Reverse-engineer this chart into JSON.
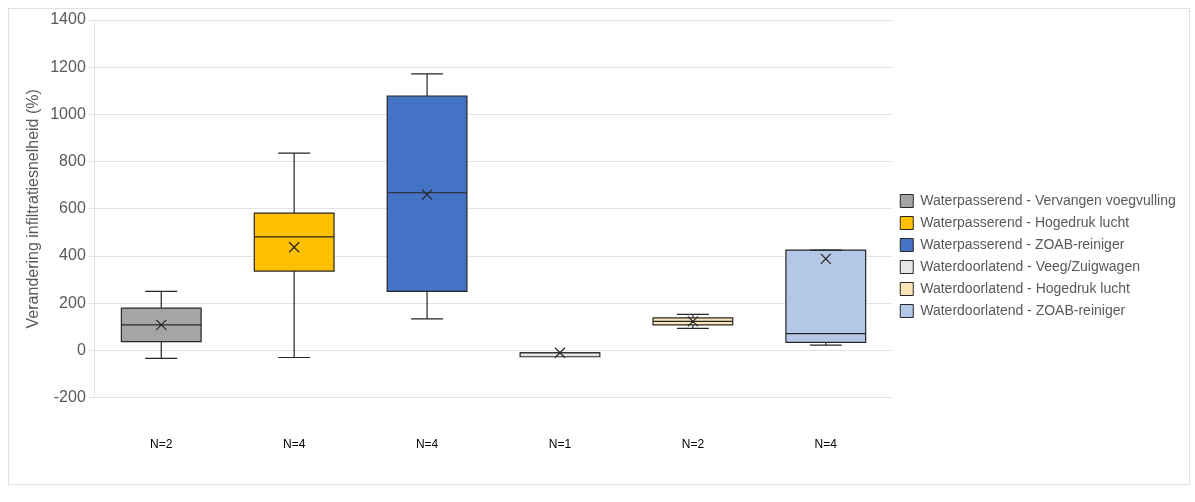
{
  "chart_data": {
    "type": "box",
    "ylabel": "Verandering infiltratiesnelheid (%)",
    "categories": [
      "N=2",
      "N=4",
      "N=4",
      "N=1",
      "N=2",
      "N=4"
    ],
    "ylim": [
      -200,
      1400
    ],
    "yticks": [
      -200,
      0,
      200,
      400,
      600,
      800,
      1000,
      1200,
      1400
    ],
    "grid": "y",
    "legend": "right",
    "series": [
      {
        "name": "Waterpasserend - Vervangen voegvulling",
        "color": "#a5a5a5",
        "boxes": [
          {
            "low": -34,
            "q1": 37,
            "median": 108,
            "q3": 179,
            "high": 250,
            "mean": 108
          },
          null,
          null,
          null,
          null,
          null
        ]
      },
      {
        "name": "Waterpasserend - Hogedruk lucht",
        "color": "#ffc000",
        "boxes": [
          null,
          {
            "low": -30,
            "q1": 336,
            "median": 481,
            "q3": 582,
            "high": 836,
            "mean": 437
          },
          null,
          null,
          null,
          null
        ]
      },
      {
        "name": "Waterpasserend - ZOAB-reiniger",
        "color": "#4472c4",
        "boxes": [
          null,
          null,
          {
            "low": 134,
            "q1": 250,
            "median": 668,
            "q3": 1078,
            "high": 1172,
            "mean": 660
          },
          null,
          null,
          null
        ]
      },
      {
        "name": "Waterdoorlatend - Veeg/Zuigwagen",
        "color": "#e7e6e6",
        "boxes": [
          null,
          null,
          null,
          {
            "low": -10,
            "q1": -10,
            "median": -10,
            "q3": -10,
            "high": -10,
            "mean": -10
          },
          null,
          null
        ]
      },
      {
        "name": "Waterdoorlatend - Hogedruk lucht",
        "color": "#fbe5b6",
        "boxes": [
          null,
          null,
          null,
          null,
          {
            "low": 93,
            "q1": 108,
            "median": 123,
            "q3": 138,
            "high": 153,
            "mean": 123
          },
          null
        ]
      },
      {
        "name": "Waterdoorlatend - ZOAB-reiniger",
        "color": "#b4c7e7",
        "boxes": [
          null,
          null,
          null,
          null,
          null,
          {
            "low": 22,
            "q1": 34,
            "median": 71,
            "q3": 425,
            "high": 425,
            "mean": 388
          }
        ]
      }
    ]
  }
}
